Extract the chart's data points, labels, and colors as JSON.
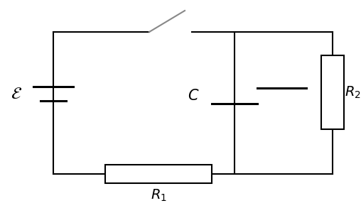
{
  "bg_color": "#ffffff",
  "line_color": "#000000",
  "switch_color": "#888888",
  "label_emf": "$\\mathcal{E}$",
  "label_C": "$C$",
  "label_R1": "$R_1$",
  "label_R2": "$R_2$",
  "figsize": [
    5.08,
    3.0
  ],
  "dpi": 100
}
